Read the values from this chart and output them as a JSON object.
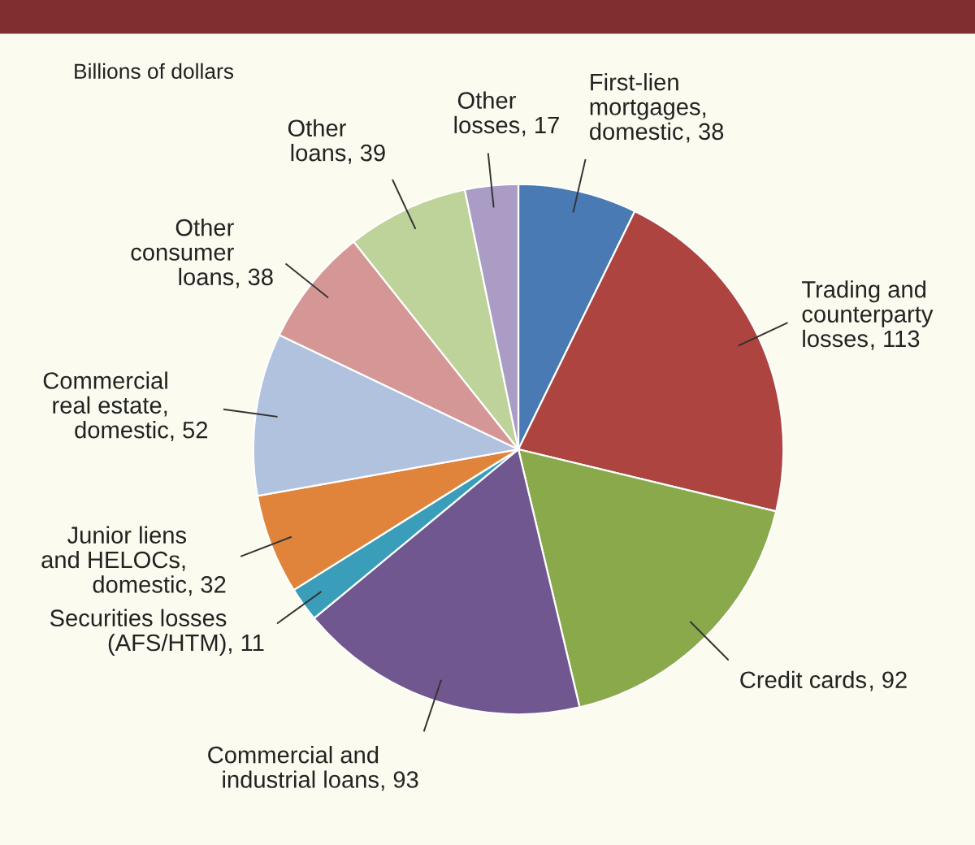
{
  "chart_data": {
    "type": "pie",
    "categories": [
      "First-lien\nmortgages,\ndomestic",
      "Trading and\ncounterparty\nlosses",
      "Credit cards",
      "Commercial and\nindustrial loans",
      "Securities losses\n(AFS/HTM)",
      "Junior liens\nand HELOCs,\ndomestic",
      "Commercial\nreal estate,\ndomestic",
      "Other\nconsumer\nloans",
      "Other\nloans",
      "Other\nlosses"
    ],
    "values": [
      38,
      113,
      92,
      93,
      11,
      32,
      52,
      38,
      39,
      17
    ],
    "colors": [
      "#4a7ab4",
      "#ad443f",
      "#89a94b",
      "#70578f",
      "#3a9dba",
      "#df843a",
      "#b1c2de",
      "#d49795",
      "#bdd39a",
      "#aa9cc4"
    ],
    "value_labels": [
      ", 38",
      ", 113",
      ", 92",
      ", 93",
      ", 11",
      ", 32",
      ", 52",
      ", 38",
      ", 39",
      ", 17"
    ],
    "annotations": [
      "Billions of dollars"
    ]
  }
}
